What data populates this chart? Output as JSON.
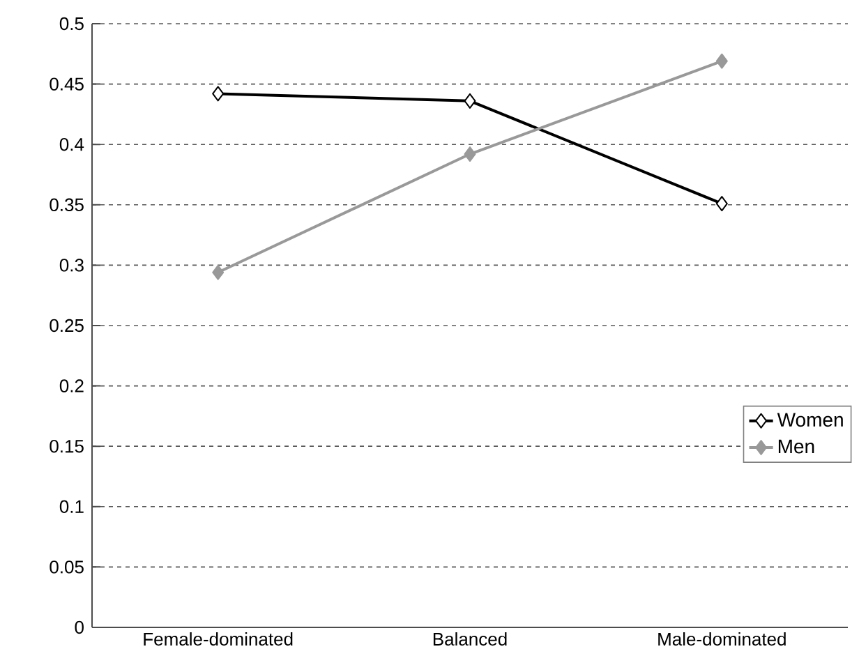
{
  "chart_data": {
    "type": "line",
    "categories": [
      "Female-dominated",
      "Balanced",
      "Male-dominated"
    ],
    "series": [
      {
        "name": "Women",
        "color": "#000000",
        "values": [
          0.442,
          0.436,
          0.351
        ]
      },
      {
        "name": "Men",
        "color": "#999999",
        "values": [
          0.294,
          0.392,
          0.469
        ]
      }
    ],
    "ylim": [
      0,
      0.5
    ],
    "yticks": [
      0,
      0.05,
      0.1,
      0.15,
      0.2,
      0.25,
      0.3,
      0.35,
      0.4,
      0.45,
      0.5
    ],
    "grid": "y",
    "legend": "right",
    "marker": "diamond",
    "line_style": "solid"
  }
}
